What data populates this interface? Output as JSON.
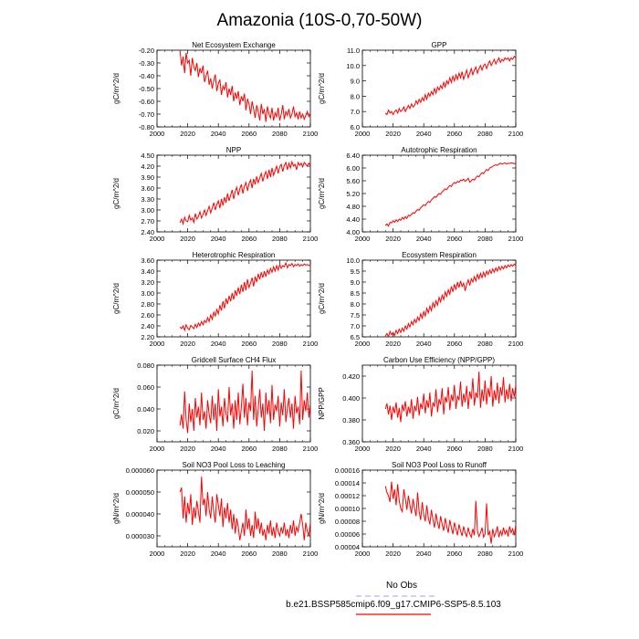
{
  "figure": {
    "title": "Amazonia (10S-0,70-50W)",
    "legend": {
      "obs_label": "No Obs",
      "obs_color": "#a0a0ff",
      "model_label": "b.e21.BSSP585cmip6.f09_g17.CMIP6-SSP5-8.5.103",
      "model_color": "#ff0000"
    }
  },
  "chart_data": [
    {
      "type": "line",
      "id": "nee",
      "title": "Net Ecosystem Exchange",
      "ylabel": "gC/m^2/d",
      "xlim": [
        2000,
        2100
      ],
      "xticks": [
        "2000",
        "2020",
        "2040",
        "2060",
        "2080",
        "2100"
      ],
      "ylim": [
        -0.8,
        -0.2
      ],
      "yticks": [
        "-0.20",
        "-0.30",
        "-0.40",
        "-0.50",
        "-0.60",
        "-0.70",
        "-0.80"
      ],
      "ytick_values": [
        -0.2,
        -0.3,
        -0.4,
        -0.5,
        -0.6,
        -0.7,
        -0.8
      ],
      "x_start": 2015,
      "values": [
        -0.2,
        -0.32,
        -0.25,
        -0.38,
        -0.22,
        -0.3,
        -0.28,
        -0.4,
        -0.26,
        -0.33,
        -0.36,
        -0.3,
        -0.41,
        -0.34,
        -0.38,
        -0.32,
        -0.45,
        -0.4,
        -0.36,
        -0.47,
        -0.42,
        -0.5,
        -0.44,
        -0.39,
        -0.52,
        -0.46,
        -0.43,
        -0.55,
        -0.48,
        -0.51,
        -0.45,
        -0.57,
        -0.5,
        -0.55,
        -0.48,
        -0.6,
        -0.53,
        -0.58,
        -0.52,
        -0.63,
        -0.56,
        -0.6,
        -0.54,
        -0.67,
        -0.58,
        -0.62,
        -0.7,
        -0.6,
        -0.66,
        -0.73,
        -0.63,
        -0.68,
        -0.75,
        -0.62,
        -0.7,
        -0.66,
        -0.76,
        -0.64,
        -0.7,
        -0.73,
        -0.65,
        -0.75,
        -0.69,
        -0.72,
        -0.65,
        -0.75,
        -0.7,
        -0.63,
        -0.74,
        -0.68,
        -0.71,
        -0.66,
        -0.73,
        -0.7,
        -0.64,
        -0.72,
        -0.69,
        -0.74,
        -0.68,
        -0.73,
        -0.7,
        -0.74,
        -0.71,
        -0.68,
        -0.72,
        -0.7
      ]
    },
    {
      "type": "line",
      "id": "gpp",
      "title": "GPP",
      "ylabel": "gC/m^2/d",
      "xlim": [
        2000,
        2100
      ],
      "xticks": [
        "2000",
        "2020",
        "2040",
        "2060",
        "2080",
        "2100"
      ],
      "ylim": [
        6.0,
        11.0
      ],
      "yticks": [
        "11.0",
        "10.0",
        "9.0",
        "8.0",
        "7.0",
        "6.0"
      ],
      "ytick_values": [
        11.0,
        10.0,
        9.0,
        8.0,
        7.0,
        6.0
      ],
      "x_start": 2015,
      "values": [
        6.9,
        6.8,
        7.1,
        6.9,
        7.0,
        6.8,
        7.0,
        7.1,
        6.9,
        7.2,
        7.0,
        7.1,
        7.3,
        7.0,
        7.2,
        7.4,
        7.2,
        7.5,
        7.3,
        7.4,
        7.7,
        7.5,
        7.8,
        7.6,
        7.9,
        7.7,
        8.1,
        7.8,
        8.2,
        8.0,
        8.3,
        8.1,
        8.5,
        8.2,
        8.6,
        8.4,
        8.7,
        8.5,
        8.9,
        8.6,
        9.0,
        8.8,
        9.2,
        8.9,
        9.3,
        9.0,
        9.4,
        9.1,
        9.5,
        9.2,
        9.6,
        9.1,
        9.4,
        9.7,
        9.2,
        9.5,
        9.8,
        9.4,
        9.7,
        9.9,
        9.5,
        9.8,
        10.0,
        9.7,
        10.0,
        10.1,
        9.8,
        10.1,
        10.3,
        10.0,
        10.2,
        10.4,
        10.1,
        10.3,
        10.5,
        10.2,
        10.4,
        10.3,
        10.5,
        10.4,
        10.5,
        10.3,
        10.5,
        10.4,
        10.6,
        10.5
      ]
    },
    {
      "type": "line",
      "id": "npp",
      "title": "NPP",
      "ylabel": "gC/m^2/d",
      "xlim": [
        2000,
        2100
      ],
      "xticks": [
        "2000",
        "2020",
        "2040",
        "2060",
        "2080",
        "2100"
      ],
      "ylim": [
        2.4,
        4.5
      ],
      "yticks": [
        "4.50",
        "4.20",
        "3.90",
        "3.60",
        "3.30",
        "3.00",
        "2.70",
        "2.40"
      ],
      "ytick_values": [
        4.5,
        4.2,
        3.9,
        3.6,
        3.3,
        3.0,
        2.7,
        2.4
      ],
      "x_start": 2015,
      "values": [
        2.65,
        2.75,
        2.62,
        2.8,
        2.7,
        2.68,
        2.85,
        2.72,
        2.78,
        2.66,
        2.9,
        2.75,
        2.82,
        2.95,
        2.78,
        2.88,
        3.0,
        2.85,
        2.98,
        3.1,
        2.92,
        3.05,
        3.2,
        3.0,
        3.15,
        3.25,
        3.05,
        3.3,
        3.12,
        3.35,
        3.2,
        3.45,
        3.25,
        3.4,
        3.55,
        3.3,
        3.5,
        3.62,
        3.4,
        3.58,
        3.7,
        3.45,
        3.65,
        3.75,
        3.52,
        3.72,
        3.82,
        3.6,
        3.85,
        3.7,
        3.92,
        3.75,
        3.88,
        4.0,
        3.78,
        3.95,
        4.05,
        3.85,
        4.1,
        3.9,
        4.15,
        3.95,
        4.08,
        4.2,
        4.0,
        4.18,
        4.25,
        4.05,
        4.22,
        4.3,
        4.1,
        4.28,
        4.15,
        4.32,
        4.2,
        4.25,
        4.1,
        4.3,
        4.22,
        4.28,
        4.18,
        4.3,
        4.25,
        4.2,
        4.28,
        4.22
      ]
    },
    {
      "type": "line",
      "id": "ar",
      "title": "Autotrophic Respiration",
      "ylabel": "gC/m^2/d",
      "xlim": [
        2000,
        2100
      ],
      "xticks": [
        "2000",
        "2020",
        "2040",
        "2060",
        "2080",
        "2100"
      ],
      "ylim": [
        4.0,
        6.4
      ],
      "yticks": [
        "6.40",
        "6.00",
        "5.60",
        "5.20",
        "4.80",
        "4.40",
        "4.00"
      ],
      "ytick_values": [
        6.4,
        6.0,
        5.6,
        5.2,
        4.8,
        4.4,
        4.0
      ],
      "x_start": 2015,
      "values": [
        4.2,
        4.25,
        4.18,
        4.3,
        4.28,
        4.35,
        4.3,
        4.38,
        4.32,
        4.4,
        4.36,
        4.45,
        4.4,
        4.48,
        4.42,
        4.52,
        4.5,
        4.55,
        4.6,
        4.58,
        4.65,
        4.7,
        4.68,
        4.75,
        4.8,
        4.85,
        4.82,
        4.9,
        4.95,
        4.92,
        5.0,
        5.05,
        5.1,
        5.08,
        5.15,
        5.2,
        5.18,
        5.25,
        5.3,
        5.35,
        5.32,
        5.4,
        5.45,
        5.42,
        5.5,
        5.55,
        5.52,
        5.58,
        5.55,
        5.62,
        5.6,
        5.65,
        5.58,
        5.62,
        5.68,
        5.55,
        5.6,
        5.65,
        5.62,
        5.7,
        5.75,
        5.72,
        5.8,
        5.85,
        5.82,
        5.9,
        5.95,
        5.92,
        6.0,
        6.02,
        6.05,
        6.08,
        6.1,
        6.08,
        6.12,
        6.15,
        6.12,
        6.14,
        6.16,
        6.12,
        6.15,
        6.14,
        6.16,
        6.15,
        6.13,
        6.16
      ]
    },
    {
      "type": "line",
      "id": "hr",
      "title": "Heterotrophic Respiration",
      "ylabel": "gC/m^2/d",
      "xlim": [
        2000,
        2100
      ],
      "xticks": [
        "2000",
        "2020",
        "2040",
        "2060",
        "2080",
        "2100"
      ],
      "ylim": [
        2.2,
        3.6
      ],
      "yticks": [
        "3.60",
        "3.40",
        "3.20",
        "3.00",
        "2.80",
        "2.60",
        "2.40",
        "2.20"
      ],
      "ytick_values": [
        3.6,
        3.4,
        3.2,
        3.0,
        2.8,
        2.6,
        2.4,
        2.2
      ],
      "x_start": 2015,
      "values": [
        2.38,
        2.35,
        2.4,
        2.32,
        2.42,
        2.36,
        2.33,
        2.41,
        2.38,
        2.35,
        2.43,
        2.37,
        2.45,
        2.4,
        2.48,
        2.42,
        2.5,
        2.46,
        2.55,
        2.48,
        2.6,
        2.52,
        2.65,
        2.58,
        2.7,
        2.62,
        2.78,
        2.68,
        2.85,
        2.72,
        2.9,
        2.8,
        2.95,
        2.85,
        3.0,
        2.88,
        3.05,
        2.95,
        3.1,
        2.98,
        3.15,
        3.02,
        3.2,
        3.05,
        3.25,
        3.1,
        3.18,
        3.28,
        3.12,
        3.3,
        3.2,
        3.35,
        3.25,
        3.38,
        3.28,
        3.4,
        3.3,
        3.42,
        3.35,
        3.45,
        3.38,
        3.48,
        3.4,
        3.5,
        3.42,
        3.52,
        3.45,
        3.5,
        3.48,
        3.55,
        3.46,
        3.52,
        3.5,
        3.54,
        3.48,
        3.52,
        3.5,
        3.53,
        3.49,
        3.52,
        3.5,
        3.53,
        3.51,
        3.52,
        3.5,
        3.52
      ]
    },
    {
      "type": "line",
      "id": "er",
      "title": "Ecosystem Respiration",
      "ylabel": "gC/m^2/d",
      "xlim": [
        2000,
        2100
      ],
      "xticks": [
        "2000",
        "2020",
        "2040",
        "2060",
        "2080",
        "2100"
      ],
      "ylim": [
        6.5,
        10.0
      ],
      "yticks": [
        "10.0",
        "9.5",
        "9.0",
        "8.5",
        "8.0",
        "7.5",
        "7.0",
        "6.5"
      ],
      "ytick_values": [
        10.0,
        9.5,
        9.0,
        8.5,
        8.0,
        7.5,
        7.0,
        6.5
      ],
      "x_start": 2015,
      "values": [
        6.55,
        6.65,
        6.5,
        6.75,
        6.6,
        6.7,
        6.55,
        6.8,
        6.65,
        6.85,
        6.7,
        6.9,
        6.75,
        7.0,
        6.85,
        7.1,
        6.95,
        7.2,
        7.05,
        7.3,
        7.15,
        7.4,
        7.25,
        7.55,
        7.35,
        7.65,
        7.45,
        7.8,
        7.6,
        7.9,
        7.7,
        8.05,
        7.85,
        8.15,
        7.95,
        8.3,
        8.1,
        8.4,
        8.2,
        8.55,
        8.35,
        8.65,
        8.45,
        8.8,
        8.55,
        8.9,
        8.65,
        9.0,
        8.75,
        9.05,
        8.8,
        8.95,
        8.6,
        8.9,
        9.1,
        8.85,
        9.15,
        9.0,
        9.25,
        9.05,
        9.35,
        9.15,
        9.4,
        9.2,
        9.45,
        9.25,
        9.5,
        9.35,
        9.55,
        9.4,
        9.6,
        9.45,
        9.65,
        9.5,
        9.7,
        9.55,
        9.72,
        9.6,
        9.75,
        9.65,
        9.78,
        9.7,
        9.8,
        9.72,
        9.82,
        9.75
      ]
    },
    {
      "type": "line",
      "id": "ch4",
      "title": "Gridcell Surface CH4 Flux",
      "ylabel": "gC/m^2/d",
      "xlim": [
        2000,
        2100
      ],
      "xticks": [
        "2000",
        "2020",
        "2040",
        "2060",
        "2080",
        "2100"
      ],
      "ylim": [
        0.01,
        0.08
      ],
      "yticks": [
        "0.080",
        "0.060",
        "0.040",
        "0.020"
      ],
      "ytick_values": [
        0.08,
        0.06,
        0.04,
        0.02
      ],
      "x_start": 2015,
      "values": [
        0.025,
        0.035,
        0.022,
        0.056,
        0.03,
        0.018,
        0.045,
        0.028,
        0.04,
        0.02,
        0.05,
        0.032,
        0.042,
        0.025,
        0.055,
        0.03,
        0.038,
        0.022,
        0.048,
        0.035,
        0.027,
        0.052,
        0.03,
        0.045,
        0.02,
        0.058,
        0.033,
        0.042,
        0.024,
        0.05,
        0.036,
        0.028,
        0.06,
        0.034,
        0.045,
        0.022,
        0.048,
        0.03,
        0.055,
        0.026,
        0.042,
        0.063,
        0.032,
        0.05,
        0.025,
        0.046,
        0.038,
        0.075,
        0.03,
        0.052,
        0.024,
        0.04,
        0.058,
        0.032,
        0.045,
        0.02,
        0.055,
        0.035,
        0.048,
        0.027,
        0.062,
        0.03,
        0.044,
        0.038,
        0.052,
        0.024,
        0.046,
        0.034,
        0.058,
        0.028,
        0.04,
        0.05,
        0.032,
        0.045,
        0.022,
        0.052,
        0.036,
        0.042,
        0.026,
        0.075,
        0.03,
        0.048,
        0.038,
        0.055,
        0.032,
        0.045
      ]
    },
    {
      "type": "line",
      "id": "cue",
      "title": "Carbon Use Efficiency (NPP/GPP)",
      "ylabel": "NPP/GPP",
      "xlim": [
        2000,
        2100
      ],
      "xticks": [
        "2000",
        "2020",
        "2040",
        "2060",
        "2080",
        "2100"
      ],
      "ylim": [
        0.36,
        0.43
      ],
      "yticks": [
        "0.420",
        "0.400",
        "0.380",
        "0.360"
      ],
      "ytick_values": [
        0.42,
        0.4,
        0.38,
        0.36
      ],
      "x_start": 2015,
      "values": [
        0.39,
        0.395,
        0.385,
        0.393,
        0.38,
        0.392,
        0.386,
        0.396,
        0.382,
        0.391,
        0.378,
        0.394,
        0.388,
        0.397,
        0.383,
        0.392,
        0.386,
        0.399,
        0.381,
        0.393,
        0.388,
        0.401,
        0.384,
        0.395,
        0.39,
        0.404,
        0.386,
        0.398,
        0.391,
        0.405,
        0.383,
        0.396,
        0.392,
        0.408,
        0.387,
        0.399,
        0.394,
        0.409,
        0.385,
        0.401,
        0.396,
        0.41,
        0.389,
        0.403,
        0.397,
        0.412,
        0.39,
        0.402,
        0.398,
        0.415,
        0.392,
        0.404,
        0.396,
        0.411,
        0.39,
        0.406,
        0.399,
        0.418,
        0.393,
        0.405,
        0.4,
        0.424,
        0.391,
        0.408,
        0.397,
        0.416,
        0.394,
        0.409,
        0.401,
        0.42,
        0.392,
        0.407,
        0.398,
        0.414,
        0.395,
        0.41,
        0.402,
        0.419,
        0.396,
        0.408,
        0.399,
        0.413,
        0.397,
        0.409,
        0.401,
        0.412
      ]
    },
    {
      "type": "line",
      "id": "leach",
      "title": "Soil NO3 Pool Loss to Leaching",
      "ylabel": "gN/m^2/d",
      "xlim": [
        2000,
        2100
      ],
      "xticks": [
        "2000",
        "2020",
        "2040",
        "2060",
        "2080",
        "2100"
      ],
      "ylim": [
        2.5e-05,
        6e-05
      ],
      "yticks": [
        "0.000060",
        "0.000050",
        "0.000040",
        "0.000030"
      ],
      "ytick_values": [
        6e-05,
        5e-05,
        4e-05,
        3e-05
      ],
      "x_start": 2015,
      "values": [
        5e-05,
        5.2e-05,
        3.8e-05,
        4.8e-05,
        3.6e-05,
        4.5e-05,
        4e-05,
        4.9e-05,
        3.5e-05,
        4.3e-05,
        3.8e-05,
        4.6e-05,
        4.1e-05,
        3.6e-05,
        5.7e-05,
        4.4e-05,
        4.7e-05,
        3.9e-05,
        5e-05,
        4.2e-05,
        3.8e-05,
        4.8e-05,
        4.1e-05,
        3.6e-05,
        4.9e-05,
        4.4e-05,
        3.9e-05,
        4.7e-05,
        3.4e-05,
        4.3e-05,
        3.8e-05,
        4.5e-05,
        3.6e-05,
        4.2e-05,
        3.3e-05,
        4e-05,
        3.1e-05,
        3.8e-05,
        3.4e-05,
        2.8e-05,
        3.2e-05,
        3.6e-05,
        3e-05,
        4.2e-05,
        3.3e-05,
        3.8e-05,
        3e-05,
        3.5e-05,
        2.9e-05,
        4.1e-05,
        3.3e-05,
        3.8e-05,
        3.1e-05,
        3.6e-05,
        3e-05,
        3.3e-05,
        2.8e-05,
        3.5e-05,
        3.1e-05,
        3.7e-05,
        3e-05,
        3.4e-05,
        2.9e-05,
        3.6e-05,
        3.2e-05,
        3e-05,
        3.4e-05,
        3.1e-05,
        3.6e-05,
        3e-05,
        3.3e-05,
        2.9e-05,
        3.5e-05,
        3.1e-05,
        3.7e-05,
        3e-05,
        3.4e-05,
        3.2e-05,
        3.6e-05,
        4e-05,
        3.5e-05,
        2.8e-05,
        3.6e-05,
        3.2e-05,
        3e-05,
        3.6e-05
      ]
    },
    {
      "type": "line",
      "id": "runoff",
      "title": "Soil NO3 Pool Loss to Runoff",
      "ylabel": "gN/m^2/d",
      "xlim": [
        2000,
        2100
      ],
      "xticks": [
        "2000",
        "2020",
        "2040",
        "2060",
        "2080",
        "2100"
      ],
      "ylim": [
        4e-05,
        0.00016
      ],
      "yticks": [
        "0.00016",
        "0.00014",
        "0.00012",
        "0.00010",
        "0.00008",
        "0.00006",
        "0.00004"
      ],
      "ytick_values": [
        0.00016,
        0.00014,
        0.00012,
        0.0001,
        8e-05,
        6e-05,
        4e-05
      ],
      "x_start": 2015,
      "values": [
        0.000135,
        0.000125,
        0.00012,
        0.00011,
        0.000142,
        0.000115,
        0.00013,
        0.000105,
        0.000138,
        0.000112,
        0.0001,
        9.5e-05,
        0.00013,
        0.000115,
        9.8e-05,
        0.00012,
        0.000105,
        9.2e-05,
        0.000115,
        0.0001,
        8.8e-05,
        0.000125,
        9.5e-05,
        8.2e-05,
        0.00011,
        9e-05,
        8e-05,
        0.000105,
        8.5e-05,
        7.5e-05,
        9.8e-05,
        8.2e-05,
        7e-05,
        9.2e-05,
        7.8e-05,
        6.8e-05,
        8.8e-05,
        7.5e-05,
        6.5e-05,
        8.5e-05,
        7.2e-05,
        6.2e-05,
        8.2e-05,
        7e-05,
        6e-05,
        7.8e-05,
        6.8e-05,
        5.8e-05,
        7.5e-05,
        6.5e-05,
        5.7e-05,
        7.2e-05,
        6.2e-05,
        5.6e-05,
        7e-05,
        6e-05,
        5.5e-05,
        6.8e-05,
        5.8e-05,
        0.000112,
        6.5e-05,
        5.6e-05,
        6.2e-05,
        7e-05,
        5.5e-05,
        6e-05,
        0.000108,
        5.8e-05,
        6.4e-05,
        4.5e-05,
        6.8e-05,
        5.6e-05,
        6.2e-05,
        7.2e-05,
        5.5e-05,
        6.5e-05,
        5.8e-05,
        7e-05,
        6e-05,
        6.6e-05,
        5.6e-05,
        7.2e-05,
        6.2e-05,
        6.8e-05,
        5.8e-05,
        7.5e-05
      ]
    }
  ]
}
